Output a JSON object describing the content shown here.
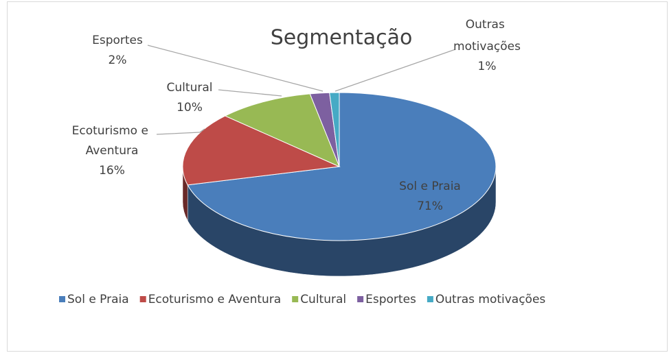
{
  "chart_data": {
    "type": "pie",
    "title": "Segmentação",
    "categories": [
      "Sol e Praia",
      "Ecoturismo e Aventura",
      "Cultural",
      "Esportes",
      "Outras motivações"
    ],
    "values": [
      71,
      16,
      10,
      2,
      1
    ],
    "value_labels": [
      "71%",
      "16%",
      "10%",
      "2%",
      "1%"
    ],
    "colors": [
      "#4a7ebb",
      "#be4b48",
      "#98b954",
      "#7d60a0",
      "#46aac5"
    ],
    "legend": "bottom"
  }
}
